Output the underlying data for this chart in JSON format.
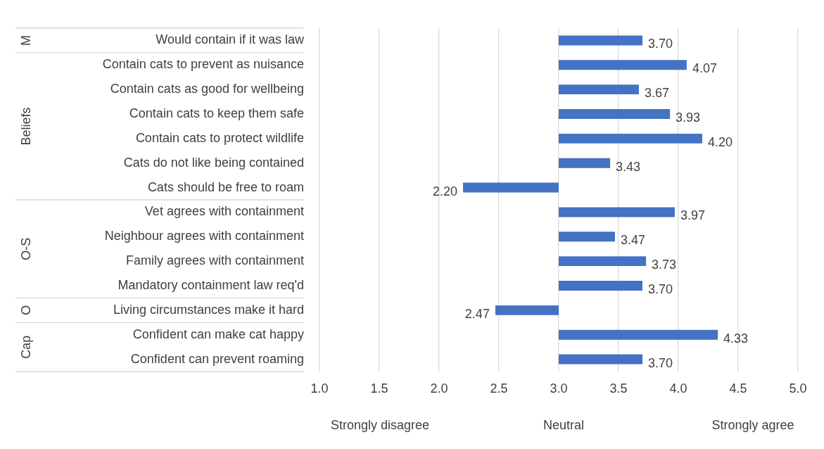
{
  "chart_data": {
    "type": "bar",
    "orientation": "horizontal",
    "categories": [
      "Would contain if it was law",
      "Contain cats to prevent as nuisance",
      "Contain cats as good for wellbeing",
      "Contain cats to keep them safe",
      "Contain cats to protect wildlife",
      "Cats do not like being contained",
      "Cats should be free to roam",
      "Vet agrees with containment",
      "Neighbour agrees with containment",
      "Family agrees with containment",
      "Mandatory containment law req'd",
      "Living circumstances make it hard",
      "Confident can make cat happy",
      "Confident can prevent roaming"
    ],
    "base": [
      3,
      3,
      3,
      3,
      3,
      3,
      3,
      3,
      3,
      3,
      3,
      3,
      3,
      3
    ],
    "values": [
      0.7,
      1.07,
      0.67,
      0.93,
      1.2,
      0.43,
      -0.8,
      0.97,
      0.47,
      0.73,
      0.7,
      -0.53,
      1.33,
      0.7
    ],
    "value_labels": [
      "3.70",
      "4.07",
      "3.67",
      "3.93",
      "4.20",
      "3.43",
      "2.20",
      "3.97",
      "3.47",
      "3.73",
      "3.70",
      "2.47",
      "4.33",
      "3.70"
    ],
    "color": "#4472c4",
    "xlim": [
      1,
      5
    ],
    "xticks": [
      {
        "value": 1,
        "label": "1.0"
      },
      {
        "value": 1.5,
        "label": "1.5"
      },
      {
        "value": 2,
        "label": "2.0"
      },
      {
        "value": 2.5,
        "label": "2.5"
      },
      {
        "value": 3,
        "label": "3.0"
      },
      {
        "value": 3.5,
        "label": "3.5"
      },
      {
        "value": 4,
        "label": "4.0"
      },
      {
        "value": 4.5,
        "label": "4.5"
      },
      {
        "value": 5,
        "label": "5.0"
      }
    ],
    "grid": "x",
    "annotations": [
      "M",
      "Beliefs",
      "O-S",
      "O",
      "Cap",
      "Strongly disagree",
      "Neutral",
      "Strongly agree"
    ]
  }
}
